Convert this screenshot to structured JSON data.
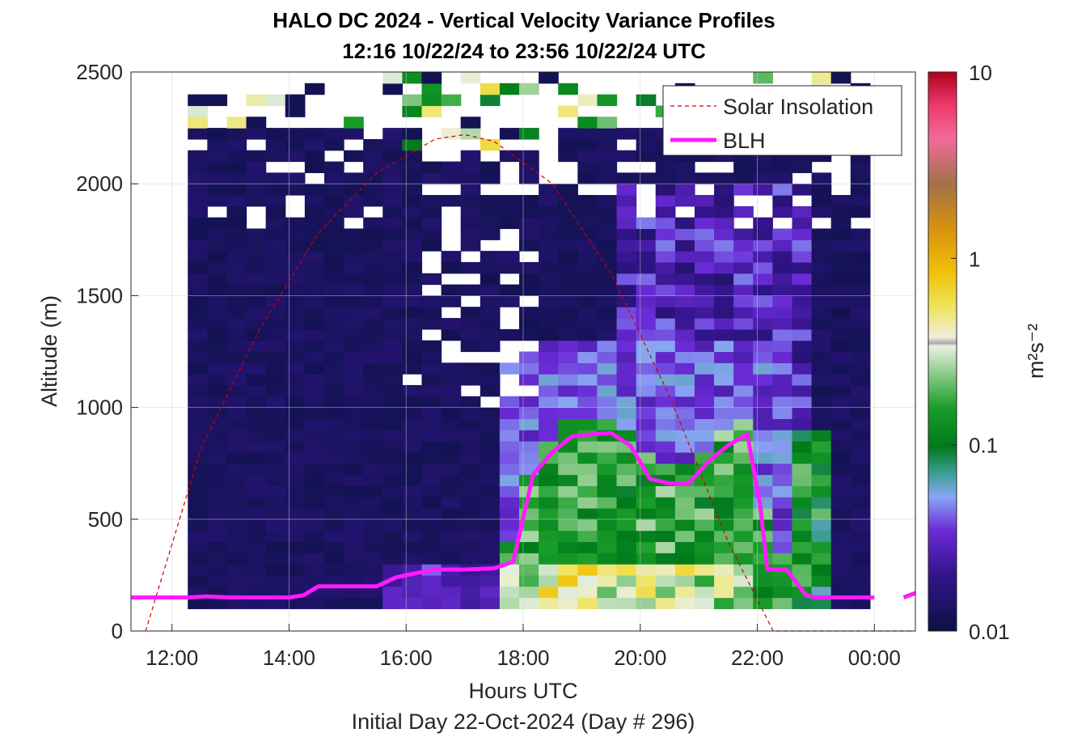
{
  "chart_data": {
    "type": "heatmap",
    "title": "HALO DC 2024 - Vertical Velocity Variance Profiles",
    "subtitle": "12:16 10/22/24 to 23:56 10/22/24  UTC",
    "xlabel": "Hours UTC",
    "xlabel2": "Initial Day 22-Oct-2024 (Day # 296)",
    "ylabel": "Altitude (m)",
    "colorbar_label": "m²s⁻²",
    "colorbar_scale": "log",
    "colorbar_range": [
      0.01,
      10
    ],
    "colorbar_ticks": [
      "10",
      "1",
      "0.1",
      "0.01"
    ],
    "xlim_hours": [
      11.3,
      24.7
    ],
    "ylim": [
      0,
      2500
    ],
    "x_ticks": [
      "12:00",
      "14:00",
      "16:00",
      "18:00",
      "20:00",
      "22:00",
      "00:00"
    ],
    "y_ticks": [
      "0",
      "500",
      "1000",
      "1500",
      "2000",
      "2500"
    ],
    "grid": true,
    "legend_position": "top-right",
    "legend": [
      {
        "name": "Solar Insolation",
        "color": "#cc0000",
        "style": "dashed"
      },
      {
        "name": "BLH",
        "color": "#ff1aff",
        "style": "solid"
      }
    ],
    "time_start_hours": 12.27,
    "time_end_hours": 23.93,
    "column_width_hours": 0.333,
    "altitude_start_m": 100,
    "altitude_bin_m": 50,
    "solar_insolation": {
      "x_hours": [
        11.55,
        12.5,
        13.5,
        14.5,
        15.5,
        16.5,
        17.0,
        17.5,
        18.5,
        19.5,
        20.5,
        21.5,
        22.27,
        24.7
      ],
      "y_m": [
        0,
        820,
        1350,
        1780,
        2050,
        2200,
        2220,
        2190,
        2000,
        1600,
        1050,
        400,
        0,
        0
      ]
    },
    "blh": {
      "x_hours": [
        11.3,
        12.27,
        12.6,
        13.0,
        13.5,
        14.0,
        14.25,
        14.5,
        15.0,
        15.5,
        15.83,
        16.2,
        16.5,
        17.0,
        17.5,
        17.83,
        18.17,
        18.5,
        18.83,
        19.17,
        19.5,
        19.83,
        20.17,
        20.5,
        20.83,
        21.17,
        21.5,
        21.83,
        22.05,
        22.17,
        22.5,
        22.83,
        23.0,
        23.5,
        24.0
      ],
      "y_m": [
        150,
        150,
        155,
        150,
        150,
        150,
        160,
        200,
        200,
        200,
        240,
        260,
        275,
        275,
        280,
        310,
        700,
        800,
        870,
        880,
        885,
        830,
        680,
        660,
        660,
        760,
        830,
        880,
        560,
        275,
        275,
        160,
        150,
        150,
        150
      ],
      "late_x_hours": [
        24.5,
        24.7
      ],
      "late_y_m": [
        150,
        170
      ]
    }
  }
}
